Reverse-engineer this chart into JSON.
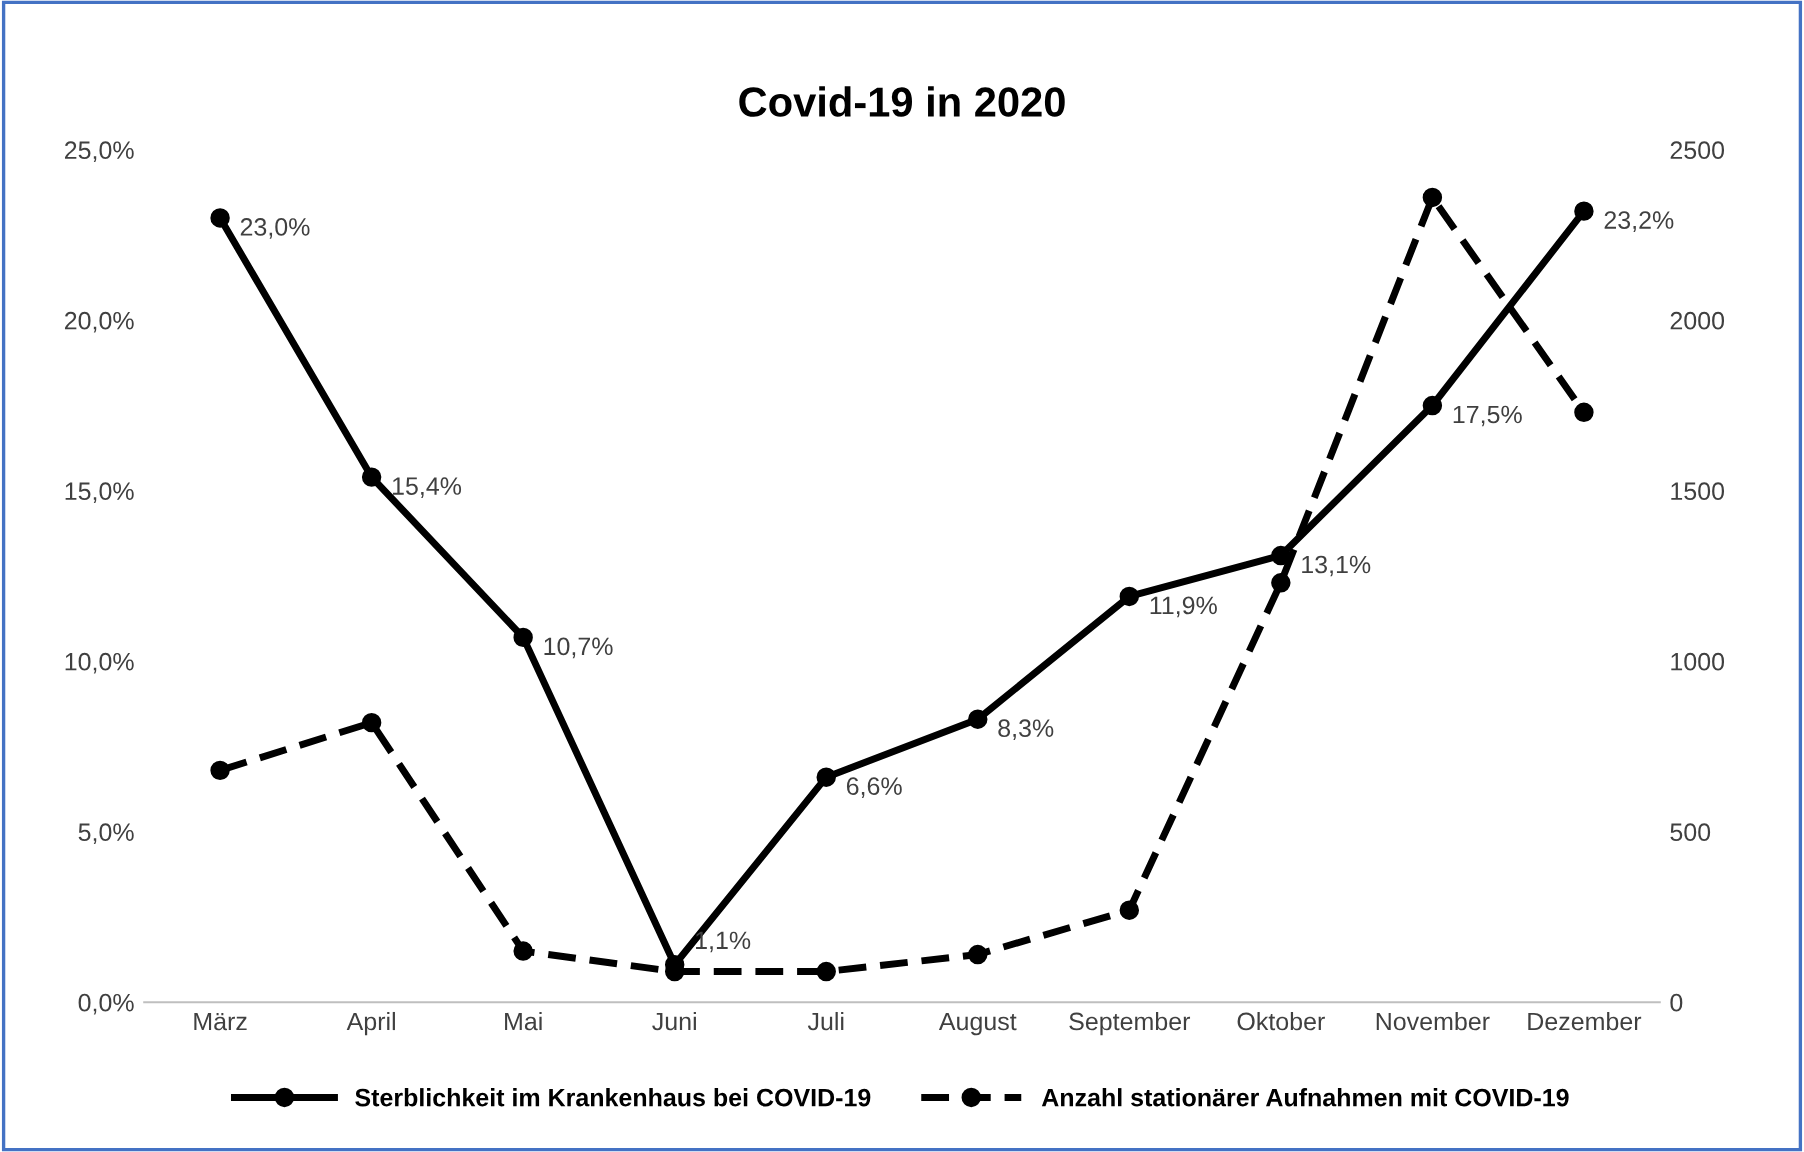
{
  "chart_data": {
    "type": "line",
    "title": "Covid-19 in 2020",
    "categories": [
      "März",
      "April",
      "Mai",
      "Juni",
      "Juli",
      "August",
      "September",
      "Oktober",
      "November",
      "Dezember"
    ],
    "series": [
      {
        "name": "Sterblichkeit im Krankenhaus bei COVID-19",
        "color": "#000000",
        "values": [
          23.0,
          15.4,
          10.7,
          1.1,
          6.6,
          8.3,
          11.9,
          13.1,
          17.5,
          23.2
        ],
        "value_labels": [
          "23,0%",
          "15,4%",
          "10,7%",
          "1,1%",
          "6,6%",
          "8,3%",
          "11,9%",
          "13,1%",
          "17,5%",
          "23,2%"
        ],
        "line_style": "solid"
      },
      {
        "name": "Anzahl stationärer Aufnahmen mit COVID-19",
        "color": "#000000",
        "axis": "y2",
        "values": [
          680,
          820,
          150,
          90,
          90,
          140,
          270,
          1230,
          2360,
          1730
        ],
        "line_style": "dashed"
      }
    ],
    "ylim": [
      0,
      25
    ],
    "yticks": [
      {
        "value": 0,
        "label": "0,0%"
      },
      {
        "value": 5,
        "label": "5,0%"
      },
      {
        "value": 10,
        "label": "10,0%"
      },
      {
        "value": 15,
        "label": "15,0%"
      },
      {
        "value": 20,
        "label": "20,0%"
      },
      {
        "value": 25,
        "label": "25,0%"
      }
    ],
    "y2lim": [
      0,
      2500
    ],
    "y2ticks": [
      0,
      500,
      1000,
      1500,
      2000,
      2500
    ],
    "marker": "circle",
    "grid": false,
    "legend": "bottom"
  }
}
